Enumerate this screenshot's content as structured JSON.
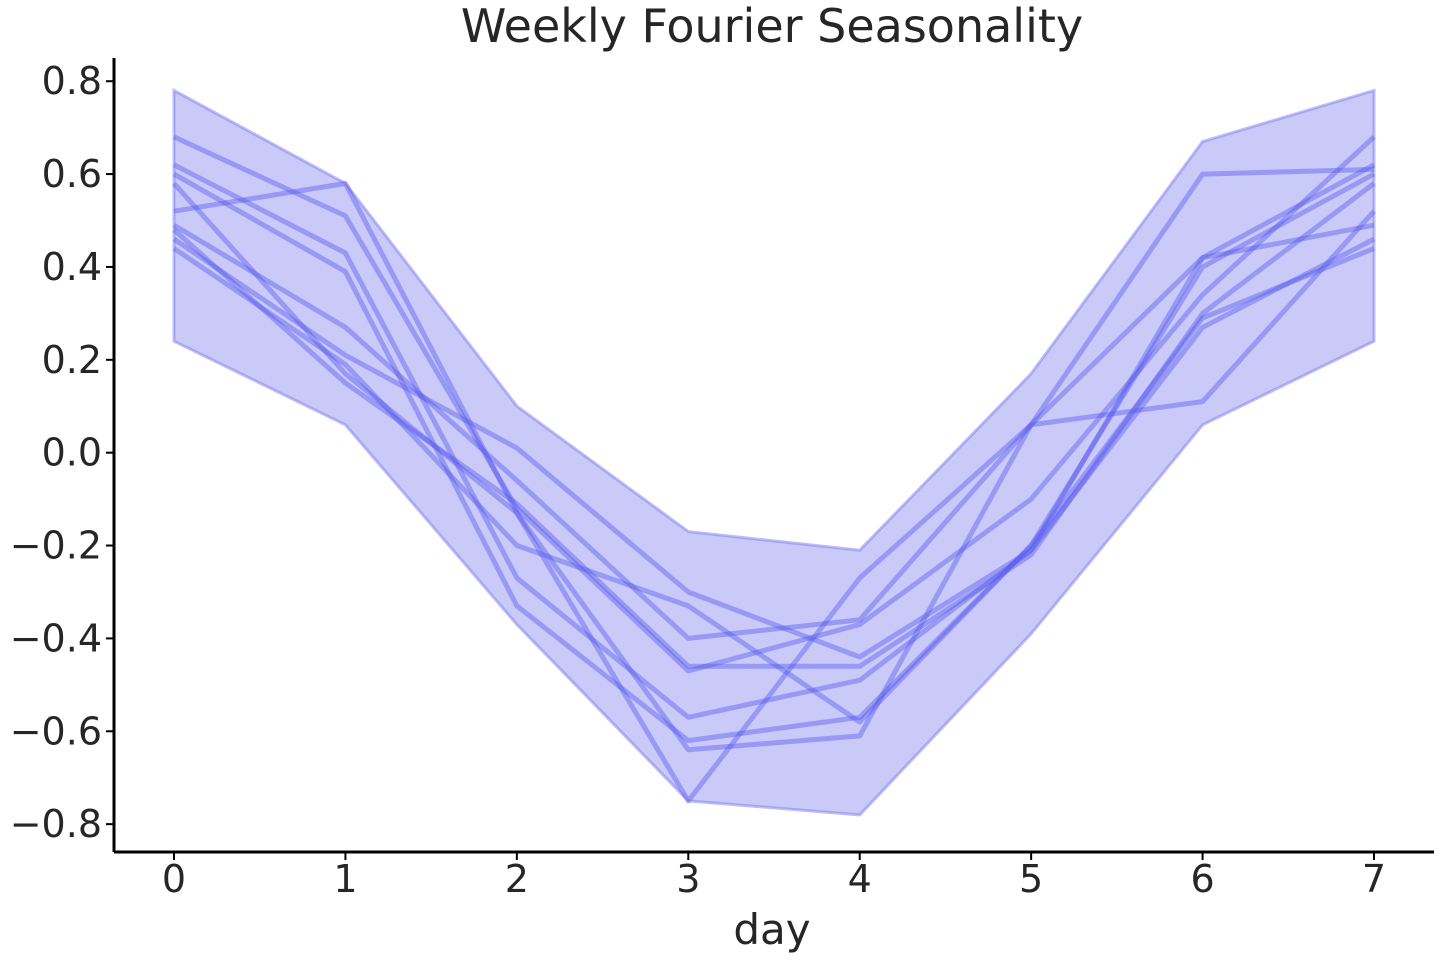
{
  "chart_data": {
    "type": "line",
    "title": "Weekly Fourier Seasonality",
    "xlabel": "day",
    "ylabel": "",
    "xlim": [
      -0.35,
      7.35
    ],
    "ylim": [
      -0.86,
      0.85
    ],
    "x_ticks": [
      0,
      1,
      2,
      3,
      4,
      5,
      6,
      7
    ],
    "x_tick_labels": [
      "0",
      "1",
      "2",
      "3",
      "4",
      "5",
      "6",
      "7"
    ],
    "y_ticks": [
      0.8,
      0.6,
      0.4,
      0.2,
      0.0,
      -0.2,
      -0.4,
      -0.6,
      -0.8
    ],
    "y_tick_labels": [
      "0.8",
      "0.6",
      "0.4",
      "0.2",
      "0.0",
      "−0.2",
      "−0.4",
      "−0.6",
      "−0.8"
    ],
    "grid": false,
    "colors": {
      "line": "#5a5af0",
      "band": "#7b7bf0",
      "text": "#262626",
      "axis": "#000000"
    },
    "x": [
      0,
      1,
      2,
      3,
      4,
      5,
      6,
      7
    ],
    "band": {
      "upper": [
        0.78,
        0.58,
        0.1,
        -0.17,
        -0.21,
        0.17,
        0.67,
        0.78
      ],
      "lower": [
        0.24,
        0.06,
        -0.37,
        -0.75,
        -0.78,
        -0.39,
        0.06,
        0.24
      ]
    },
    "series": [
      {
        "values": [
          0.68,
          0.51,
          -0.12,
          -0.47,
          -0.37,
          -0.1,
          0.34,
          0.68
        ]
      },
      {
        "values": [
          0.52,
          0.58,
          -0.13,
          -0.64,
          -0.61,
          0.06,
          0.11,
          0.52
        ]
      },
      {
        "values": [
          0.62,
          0.43,
          -0.27,
          -0.57,
          -0.49,
          -0.21,
          0.42,
          0.62
        ]
      },
      {
        "values": [
          0.6,
          0.39,
          -0.33,
          -0.62,
          -0.57,
          -0.2,
          0.4,
          0.6
        ]
      },
      {
        "values": [
          0.49,
          0.27,
          -0.06,
          -0.4,
          -0.36,
          0.06,
          0.6,
          0.61
        ]
      },
      {
        "values": [
          0.46,
          0.21,
          0.01,
          -0.3,
          -0.44,
          -0.21,
          0.27,
          0.46
        ]
      },
      {
        "values": [
          0.44,
          0.19,
          -0.2,
          -0.33,
          -0.58,
          -0.2,
          0.29,
          0.44
        ]
      },
      {
        "values": [
          0.58,
          0.17,
          -0.13,
          -0.75,
          -0.27,
          0.06,
          0.42,
          0.49
        ]
      },
      {
        "values": [
          0.48,
          0.15,
          -0.11,
          -0.46,
          -0.46,
          -0.22,
          0.3,
          0.58
        ]
      }
    ]
  }
}
